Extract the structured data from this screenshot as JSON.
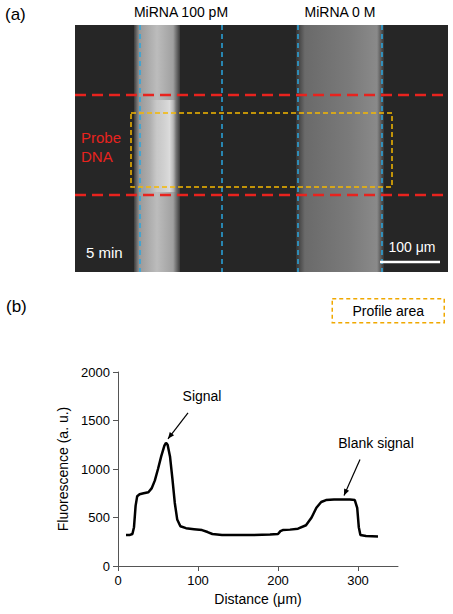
{
  "panel_a": {
    "letter": "(a)",
    "columns": [
      "MiRNA 100 pM",
      "MiRNA 0 M"
    ],
    "probe_label": "Probe DNA",
    "time_label": "5 min",
    "scale_label": "100 μm"
  },
  "chart_data": {
    "type": "line",
    "panel_label": "(b)",
    "box_label": "Profile area",
    "x_label": "Distance (μm)",
    "y_label": "Fluorescence (a. u.)",
    "x": [
      10,
      15,
      18,
      20,
      22,
      24,
      27,
      32,
      38,
      42,
      46,
      50,
      54,
      58,
      60,
      62,
      65,
      68,
      71,
      74,
      78,
      85,
      95,
      105,
      112,
      118,
      130,
      150,
      170,
      190,
      200,
      203,
      206,
      215,
      225,
      235,
      242,
      248,
      254,
      260,
      270,
      280,
      290,
      296,
      299,
      301,
      303,
      310,
      325
    ],
    "values": [
      320,
      320,
      330,
      400,
      620,
      720,
      740,
      750,
      760,
      800,
      880,
      1000,
      1130,
      1240,
      1270,
      1250,
      1130,
      900,
      650,
      480,
      410,
      390,
      380,
      370,
      350,
      330,
      320,
      320,
      320,
      325,
      330,
      360,
      370,
      375,
      385,
      420,
      500,
      600,
      660,
      680,
      685,
      685,
      685,
      680,
      600,
      400,
      320,
      310,
      305
    ],
    "color": "#000000",
    "xlim": [
      0,
      350
    ],
    "xticks": [
      0,
      100,
      200,
      300
    ],
    "ylim": [
      0,
      2000
    ],
    "yticks": [
      0,
      500,
      1000,
      1500,
      2000
    ],
    "grid": false,
    "annotations": [
      {
        "text": "Signal",
        "x": 60,
        "y": 1270
      },
      {
        "text": "Blank signal",
        "x": 280,
        "y": 685
      }
    ]
  }
}
